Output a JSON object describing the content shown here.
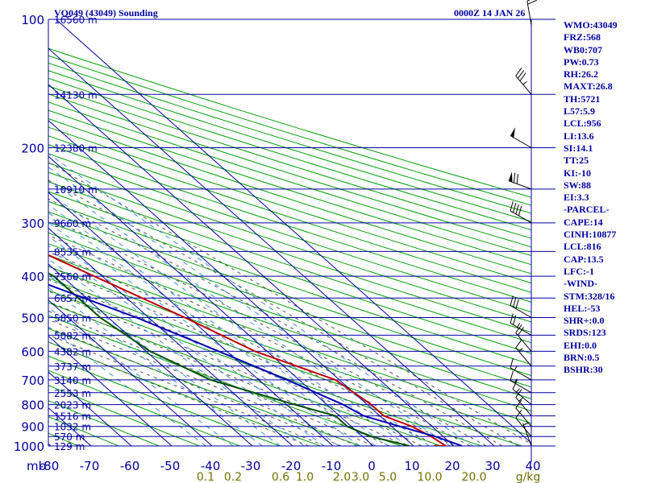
{
  "header": {
    "station": "VQ049 (43049) Sounding",
    "time": "0000Z 14 JAN 26"
  },
  "indices": [
    "WMO:43049",
    "FRZ:568",
    "WB0:707",
    "PW:0.73",
    "RH:26.2",
    "MAXT:26.8",
    "TH:5721",
    "L57:5.9",
    "LCL:956",
    "LI:13.6",
    "SI:14.1",
    "TT:25",
    "KI:-10",
    "SW:88",
    "EI:3.3",
    "-PARCEL-",
    "CAPE:14",
    "CINH:10877",
    "LCL:816",
    "CAP:13.5",
    "LFC:-1",
    "-WIND-",
    "STM:328/16",
    "HEL:-53",
    "SHR+:0.0",
    "SRDS:123",
    "EHI:0.0",
    "BRN:0.5",
    "BSHR:30"
  ],
  "colors": {
    "grid": "#0000a0",
    "isotherm": "#0000a0",
    "dry_adiabat": "#00a000",
    "moist_adiabat": "#505050",
    "mixing_ratio": "#3c8cdc",
    "temperature": "#c00000",
    "dewpoint": "#005000",
    "parcel": "#0000b0",
    "wind_barb": "#000000"
  },
  "chart_data": {
    "type": "line",
    "title": "VQ049 (43049) Sounding",
    "xlabel": "",
    "ylabel": "mb",
    "x_axis_unit_label": "mb",
    "pressure_ticks": [
      100,
      200,
      300,
      400,
      500,
      600,
      700,
      800,
      900,
      1000
    ],
    "pressure_tick_labels": [
      "100",
      "200",
      "300",
      "400",
      "500",
      "600",
      "700",
      "800",
      "900",
      "1000"
    ],
    "pressure_range": [
      100,
      1000
    ],
    "temperature_ticks": [
      -80,
      -70,
      -60,
      -50,
      -40,
      -30,
      -20,
      -10,
      0,
      10,
      20,
      30,
      40
    ],
    "temperature_tick_labels": [
      "-80",
      "-70",
      "-60",
      "-50",
      "-40",
      "-30",
      "-20",
      "-10",
      "0",
      "10",
      "20",
      "30",
      "40"
    ],
    "mixing_ratio_labels": [
      "0.1",
      "0.2",
      "0.6",
      "1.0",
      "2.0",
      "3.0",
      "5.0",
      "10.0",
      "20.0",
      "g/kg"
    ],
    "height_levels": [
      {
        "p": 100,
        "label": "16560 m"
      },
      {
        "p": 150,
        "label": "14130 m"
      },
      {
        "p": 200,
        "label": "12380 m"
      },
      {
        "p": 250,
        "label": "10910 m"
      },
      {
        "p": 300,
        "label": "9660 m"
      },
      {
        "p": 350,
        "label": "8535 m"
      },
      {
        "p": 400,
        "label": "7560 m"
      },
      {
        "p": 450,
        "label": "6657 m"
      },
      {
        "p": 500,
        "label": "5850 m"
      },
      {
        "p": 550,
        "label": "5082 m"
      },
      {
        "p": 600,
        "label": "4382 m"
      },
      {
        "p": 650,
        "label": "3737 m"
      },
      {
        "p": 700,
        "label": "3140 m"
      },
      {
        "p": 750,
        "label": "2553 m"
      },
      {
        "p": 800,
        "label": "2023 m"
      },
      {
        "p": 850,
        "label": "1516 m"
      },
      {
        "p": 900,
        "label": "1032 m"
      },
      {
        "p": 950,
        "label": "570 m"
      },
      {
        "p": 1000,
        "label": "129 m"
      }
    ],
    "series": [
      {
        "name": "Temperature",
        "points": [
          [
            100,
            -74
          ],
          [
            150,
            -62
          ],
          [
            200,
            -53
          ],
          [
            250,
            -43
          ],
          [
            300,
            -36
          ],
          [
            400,
            -22
          ],
          [
            500,
            -11
          ],
          [
            600,
            -3
          ],
          [
            700,
            9
          ],
          [
            800,
            11
          ],
          [
            850,
            11
          ],
          [
            900,
            15
          ],
          [
            950,
            17
          ],
          [
            1000,
            18
          ],
          [
            1000,
            15
          ]
        ]
      },
      {
        "name": "Dewpoint",
        "points": [
          [
            250,
            -79
          ],
          [
            300,
            -42
          ],
          [
            400,
            -32
          ],
          [
            500,
            -32
          ],
          [
            600,
            -29
          ],
          [
            700,
            -22
          ],
          [
            800,
            -8
          ],
          [
            850,
            -1
          ],
          [
            900,
            -1
          ],
          [
            950,
            2
          ],
          [
            1000,
            9
          ]
        ]
      },
      {
        "name": "Parcel",
        "points": [
          [
            200,
            -85
          ],
          [
            300,
            -55
          ],
          [
            400,
            -39
          ],
          [
            500,
            -23
          ],
          [
            600,
            -12
          ],
          [
            700,
            -3
          ],
          [
            800,
            4
          ],
          [
            850,
            6
          ],
          [
            900,
            12
          ],
          [
            950,
            18
          ],
          [
            1000,
            22
          ]
        ]
      }
    ],
    "winds": [
      {
        "p": 103,
        "dir": 350,
        "spd": 20
      },
      {
        "p": 150,
        "dir": 320,
        "spd": 35
      },
      {
        "p": 200,
        "dir": 300,
        "spd": 50
      },
      {
        "p": 250,
        "dir": 290,
        "spd": 70
      },
      {
        "p": 300,
        "dir": 300,
        "spd": 40
      },
      {
        "p": 500,
        "dir": 300,
        "spd": 30
      },
      {
        "p": 550,
        "dir": 300,
        "spd": 25
      },
      {
        "p": 600,
        "dir": 320,
        "spd": 20
      },
      {
        "p": 650,
        "dir": 320,
        "spd": 15
      },
      {
        "p": 700,
        "dir": 300,
        "spd": 15
      },
      {
        "p": 750,
        "dir": 300,
        "spd": 15
      },
      {
        "p": 800,
        "dir": 310,
        "spd": 15
      },
      {
        "p": 850,
        "dir": 320,
        "spd": 15
      },
      {
        "p": 900,
        "dir": 320,
        "spd": 10
      },
      {
        "p": 950,
        "dir": 320,
        "spd": 10
      },
      {
        "p": 1000,
        "dir": 340,
        "spd": 5
      }
    ]
  }
}
